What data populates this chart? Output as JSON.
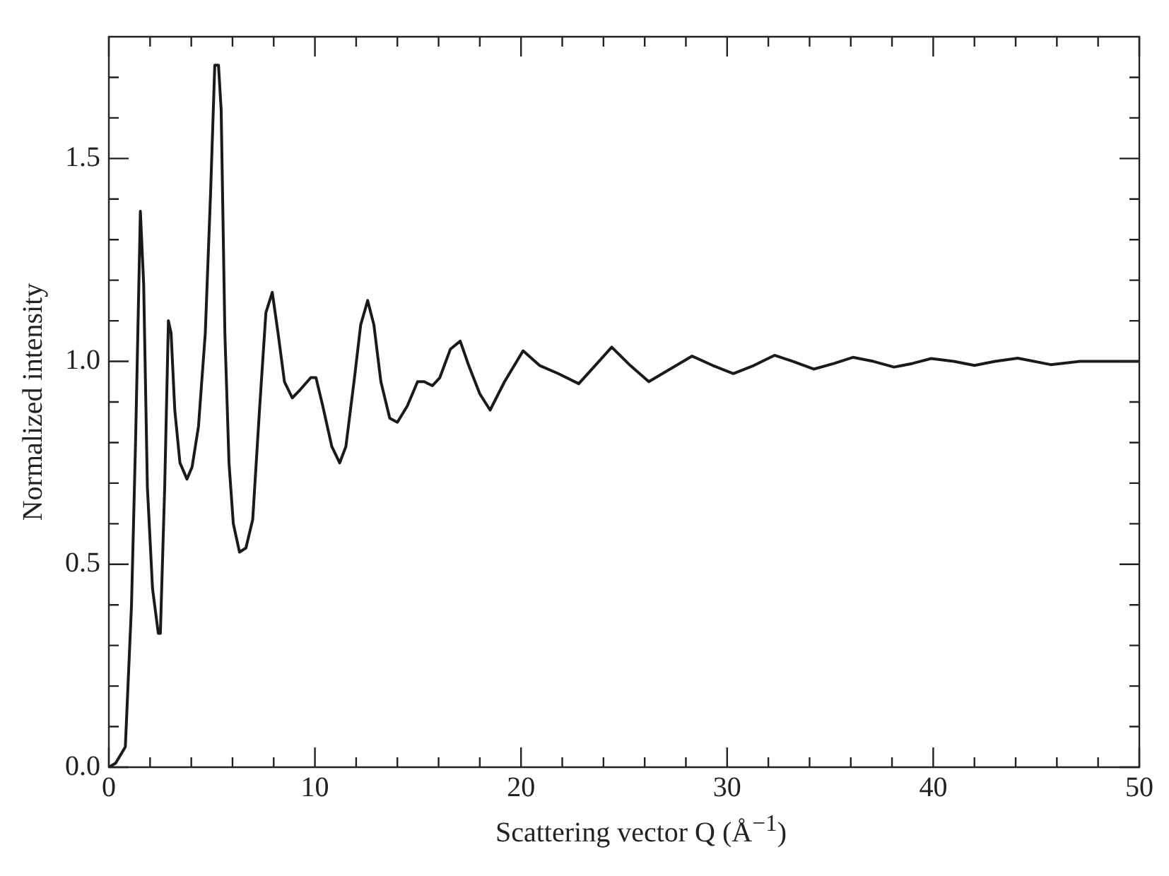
{
  "chart_data": {
    "type": "line",
    "xlabel": "Scattering vector Q (Å$^{−1}$)",
    "ylabel": "Normalized intensity",
    "series": [
      {
        "color": "#1a1a1a",
        "x": [
          0,
          0.33,
          0.8,
          1.1,
          1.3,
          1.53,
          1.69,
          1.87,
          2.12,
          2.4,
          2.5,
          2.71,
          2.89,
          3.02,
          3.2,
          3.45,
          3.79,
          4.04,
          4.35,
          4.68,
          4.94,
          5.14,
          5.32,
          5.45,
          5.63,
          5.83,
          6.04,
          6.34,
          6.65,
          6.98,
          7.31,
          7.62,
          7.93,
          8.21,
          8.52,
          8.9,
          9.28,
          9.8,
          10.05,
          10.38,
          10.82,
          11.2,
          11.5,
          11.92,
          12.22,
          12.56,
          12.86,
          13.2,
          13.63,
          14.0,
          14.48,
          14.98,
          15.3,
          15.7,
          16.06,
          16.57,
          17.05,
          17.46,
          18.0,
          18.5,
          19.2,
          20.1,
          20.9,
          21.8,
          22.8,
          23.6,
          24.4,
          25.3,
          26.2,
          27.2,
          28.3,
          29.3,
          30.3,
          31.3,
          32.3,
          33.2,
          34.2,
          35.2,
          36.1,
          37.1,
          38.1,
          39.0,
          39.9,
          41.0,
          42.0,
          43.0,
          44.1,
          45.7,
          47.1,
          48.5,
          50
        ],
        "values": [
          0,
          0.01,
          0.05,
          0.4,
          0.81,
          1.37,
          1.19,
          0.69,
          0.44,
          0.33,
          0.33,
          0.69,
          1.1,
          1.07,
          0.88,
          0.75,
          0.71,
          0.74,
          0.84,
          1.07,
          1.42,
          1.73,
          1.73,
          1.62,
          1.07,
          0.75,
          0.6,
          0.53,
          0.54,
          0.61,
          0.88,
          1.12,
          1.17,
          1.07,
          0.95,
          0.91,
          0.93,
          0.96,
          0.96,
          0.89,
          0.79,
          0.75,
          0.79,
          0.96,
          1.09,
          1.15,
          1.09,
          0.95,
          0.86,
          0.85,
          0.89,
          0.95,
          0.95,
          0.94,
          0.96,
          1.03,
          1.05,
          0.99,
          0.92,
          0.88,
          0.95,
          1.026,
          0.99,
          0.97,
          0.945,
          0.99,
          1.035,
          0.99,
          0.95,
          0.98,
          1.013,
          0.99,
          0.97,
          0.99,
          1.015,
          1.0,
          0.981,
          0.995,
          1.01,
          1.0,
          0.986,
          0.995,
          1.007,
          1.0,
          0.99,
          1.0,
          1.008,
          0.992,
          1.0,
          1.0,
          1.0
        ]
      }
    ],
    "xlim": [
      0,
      50
    ],
    "ylim": [
      0,
      1.8
    ],
    "xticks": [
      0,
      {
        "value": 2,
        "label": null
      },
      {
        "value": 4,
        "label": null
      },
      {
        "value": 6,
        "label": null
      },
      {
        "value": 8,
        "label": null
      },
      10,
      {
        "value": 12,
        "label": null
      },
      {
        "value": 14,
        "label": null
      },
      {
        "value": 16,
        "label": null
      },
      {
        "value": 18,
        "label": null
      },
      20,
      {
        "value": 22,
        "label": null
      },
      {
        "value": 24,
        "label": null
      },
      {
        "value": 26,
        "label": null
      },
      {
        "value": 28,
        "label": null
      },
      30,
      {
        "value": 32,
        "label": null
      },
      {
        "value": 34,
        "label": null
      },
      {
        "value": 36,
        "label": null
      },
      {
        "value": 38,
        "label": null
      },
      40,
      {
        "value": 42,
        "label": null
      },
      {
        "value": 44,
        "label": null
      },
      {
        "value": 46,
        "label": null
      },
      {
        "value": 48,
        "label": null
      },
      50
    ],
    "yticks": [
      {
        "value": 0,
        "label": "0.0"
      },
      {
        "value": 0.1,
        "label": null
      },
      {
        "value": 0.2,
        "label": null
      },
      {
        "value": 0.3,
        "label": null
      },
      {
        "value": 0.4,
        "label": null
      },
      {
        "value": 0.5,
        "label": "0.5"
      },
      {
        "value": 0.6,
        "label": null
      },
      {
        "value": 0.7,
        "label": null
      },
      {
        "value": 0.8,
        "label": null
      },
      {
        "value": 0.9,
        "label": null
      },
      {
        "value": 1,
        "label": "1.0"
      },
      {
        "value": 1.1,
        "label": null
      },
      {
        "value": 1.2,
        "label": null
      },
      {
        "value": 1.3,
        "label": null
      },
      {
        "value": 1.4,
        "label": null
      },
      {
        "value": 1.5,
        "label": "1.5"
      },
      {
        "value": 1.6,
        "label": null
      },
      {
        "value": 1.7,
        "label": null
      }
    ],
    "grid": false,
    "legend": false,
    "marker": "none",
    "line_style": "solid"
  }
}
